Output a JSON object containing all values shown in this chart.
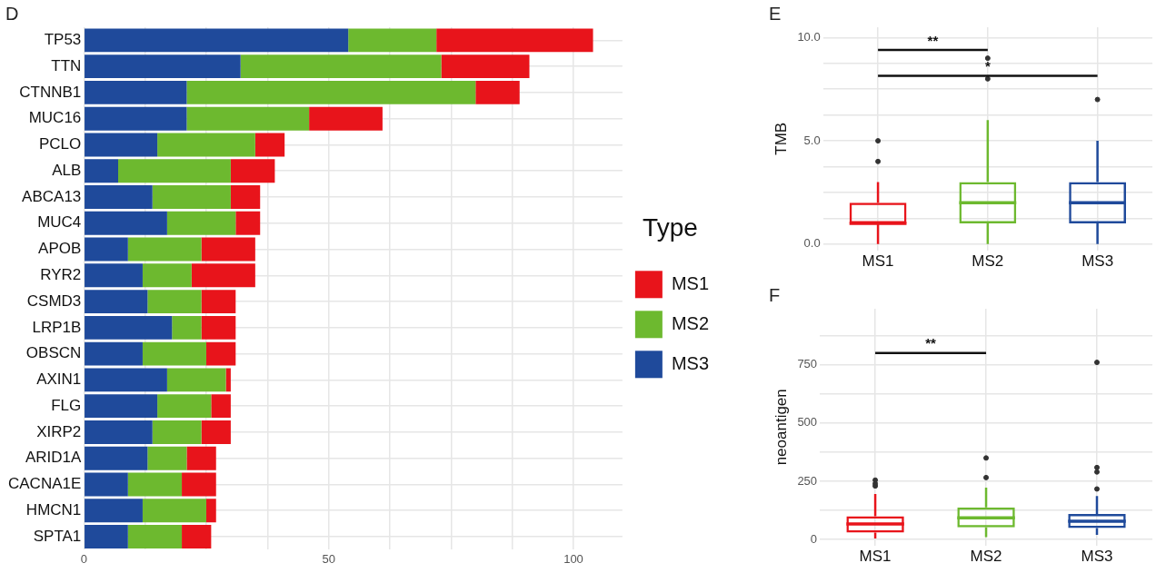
{
  "chart_data": [
    {
      "type": "bar",
      "title": "D",
      "orientation": "horizontal",
      "stacked": true,
      "grid": true,
      "legend": "right",
      "legend_title": "Type",
      "categories": [
        "TP53",
        "TTN",
        "CTNNB1",
        "MUC16",
        "PCLO",
        "ALB",
        "ABCA13",
        "MUC4",
        "APOB",
        "RYR2",
        "CSMD3",
        "LRP1B",
        "OBSCN",
        "AXIN1",
        "FLG",
        "XIRP2",
        "ARID1A",
        "CACNA1E",
        "HMCN1",
        "SPTA1"
      ],
      "series": [
        {
          "name": "MS3",
          "color": "#1f4a9b",
          "values": [
            54,
            32,
            21,
            21,
            15,
            7,
            14,
            17,
            9,
            12,
            13,
            18,
            12,
            17,
            15,
            14,
            13,
            9,
            12,
            9
          ]
        },
        {
          "name": "MS2",
          "color": "#6db92f",
          "values": [
            18,
            41,
            59,
            25,
            20,
            23,
            16,
            14,
            15,
            10,
            11,
            6,
            13,
            12,
            11,
            10,
            8,
            11,
            13,
            11
          ]
        },
        {
          "name": "MS1",
          "color": "#e8141b",
          "values": [
            32,
            18,
            9,
            15,
            6,
            9,
            6,
            5,
            11,
            13,
            7,
            7,
            6,
            1,
            4,
            6,
            6,
            7,
            2,
            6
          ]
        }
      ],
      "xlim": [
        0,
        110
      ],
      "xticks": [
        0,
        {
          "value": 12.5,
          "label": null
        },
        {
          "value": 25,
          "label": null
        },
        {
          "value": 37.5,
          "label": null
        },
        50,
        {
          "value": 62.5,
          "label": null
        },
        {
          "value": 75,
          "label": null
        },
        {
          "value": 87.5,
          "label": null
        },
        100
      ]
    },
    {
      "type": "box",
      "title": "E",
      "ylabel": "TMB",
      "grid": true,
      "categories": [
        "MS1",
        "MS2",
        "MS3"
      ],
      "colors": [
        "#e8141b",
        "#6db92f",
        "#1f4a9b"
      ],
      "boxes": [
        {
          "low": 0,
          "q1": 1,
          "median": 1,
          "q3": 2,
          "high": 3,
          "outliers": [
            4,
            5
          ]
        },
        {
          "low": 0,
          "q1": 1,
          "median": 2,
          "q3": 3,
          "high": 6,
          "outliers": [
            8,
            9
          ]
        },
        {
          "low": 0,
          "q1": 1,
          "median": 2,
          "q3": 3,
          "high": 5,
          "outliers": [
            7
          ]
        }
      ],
      "ylim": [
        -0.3,
        10.5
      ],
      "yticks": [
        {
          "value": 0,
          "label": "0.0"
        },
        {
          "value": 1.25,
          "label": null
        },
        {
          "value": 2.5,
          "label": null
        },
        {
          "value": 3.75,
          "label": null
        },
        {
          "value": 5,
          "label": "5.0"
        },
        {
          "value": 6.25,
          "label": null
        },
        {
          "value": 7.5,
          "label": null
        },
        {
          "value": 8.75,
          "label": null
        },
        {
          "value": 10,
          "label": "10.0"
        }
      ],
      "annotations": [
        "**",
        "*"
      ]
    },
    {
      "type": "box",
      "title": "F",
      "ylabel": "neoantigen",
      "grid": true,
      "categories": [
        "MS1",
        "MS2",
        "MS3"
      ],
      "colors": [
        "#e8141b",
        "#6db92f",
        "#1f4a9b"
      ],
      "boxes": [
        {
          "low": 5,
          "q1": 30,
          "median": 67,
          "q3": 100,
          "high": 195,
          "outliers": [
            230,
            240,
            255
          ]
        },
        {
          "low": 10,
          "q1": 52,
          "median": 93,
          "q3": 138,
          "high": 223,
          "outliers": [
            266,
            350
          ]
        },
        {
          "low": 20,
          "q1": 49,
          "median": 79,
          "q3": 110,
          "high": 187,
          "outliers": [
            217,
            290,
            309,
            760
          ]
        }
      ],
      "ylim": [
        -25,
        990
      ],
      "yticks": [
        0,
        {
          "value": 125,
          "label": null
        },
        250,
        {
          "value": 375,
          "label": null
        },
        500,
        {
          "value": 625,
          "label": null
        },
        750,
        {
          "value": 875,
          "label": null
        }
      ],
      "annotations": [
        "**"
      ]
    }
  ]
}
